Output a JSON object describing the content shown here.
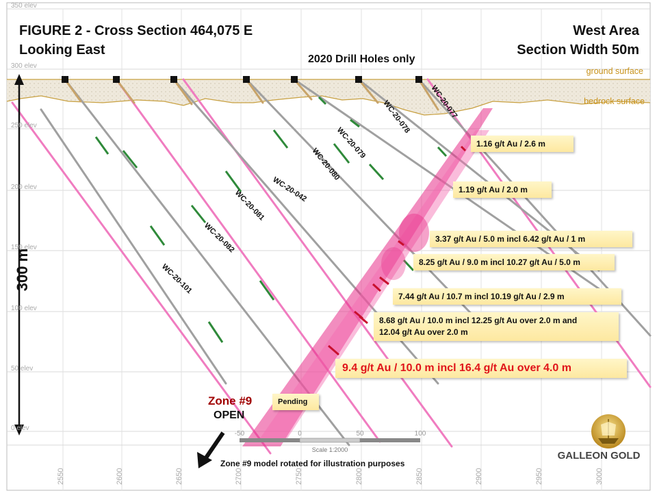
{
  "title": {
    "line1": "FIGURE 2 - Cross Section 464,075 E",
    "line2": "Looking East",
    "right1": "West Area",
    "right2": "Section Width 50m",
    "center": "2020 Drill  Holes only"
  },
  "surfaces": {
    "ground": "ground surface",
    "bedrock": "bedrock surface"
  },
  "elevations": [
    "350 elev",
    "300 elev",
    "250 elev",
    "200 elev",
    "150 elev",
    "100 elev",
    "50 elev",
    "0 elev"
  ],
  "eastings": [
    "2550",
    "2600",
    "2650",
    "2700",
    "2750",
    "2800",
    "2850",
    "2900",
    "2950",
    "3000"
  ],
  "scale_bar": {
    "labels": [
      "-50",
      "0",
      "50",
      "100"
    ],
    "caption": "Scale 1:2000"
  },
  "vertical_scale": "300 m",
  "drill_holes": [
    "WC-20-077",
    "WC-20-078",
    "WC-20-079",
    "WC-20-080",
    "WC-20-042",
    "WC-20-081",
    "WC-20-082",
    "WC-20-101"
  ],
  "intercepts": [
    "1.16 g/t Au / 2.6  m",
    "1.19 g/t Au / 2.0  m",
    "3.37 g/t Au / 5.0 m incl 6.42 g/t Au / 1 m",
    "8.25  g/t Au / 9.0 m incl 10.27  g/t Au / 5.0 m",
    "7.44  g/t Au / 10.7  m incl 10.19  g/t Au / 2.9 m",
    "8.68 g/t Au / 10.0 m incl 12.25 g/t Au over 2.0 m and",
    "12.04  g/t Au over 2.0 m",
    "9.4 g/t Au / 10.0 m incl 16.4 g/t Au over  4.0 m",
    "Pending"
  ],
  "zone": {
    "name": "Zone #9",
    "status": "OPEN",
    "note": "Zone #9 model rotated for illustration purposes"
  },
  "logo": {
    "text": "GALLEON GOLD"
  },
  "colors": {
    "pink": "#f07cc0",
    "grey": "#9a9a9a",
    "tan": "#c8a46a",
    "zone": "#e8308a",
    "callout": "#fde8a0",
    "highlight": "#e0141b",
    "gold": "#c9a227"
  }
}
